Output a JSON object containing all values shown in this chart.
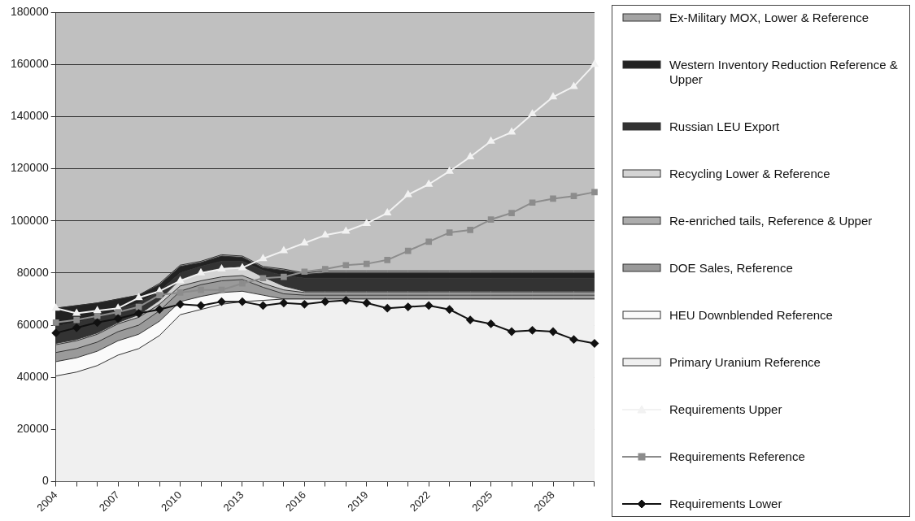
{
  "chart_data": {
    "type": "area",
    "stacked": true,
    "categories": [
      "2004",
      null,
      null,
      "2007",
      null,
      null,
      "2010",
      null,
      null,
      "2013",
      null,
      null,
      "2016",
      null,
      null,
      "2019",
      null,
      null,
      "2022",
      null,
      null,
      "2025",
      null,
      null,
      "2028",
      null,
      null
    ],
    "ylim": [
      0,
      180000
    ],
    "yticks": [
      0,
      20000,
      40000,
      60000,
      80000,
      100000,
      120000,
      140000,
      160000,
      180000
    ],
    "grid": "y",
    "legend": "right",
    "series": [
      {
        "name": "Requirements Lower",
        "type": "line",
        "marker": "diamond",
        "color": "#111111",
        "values": [
          57000,
          59000,
          61000,
          62500,
          64500,
          66000,
          68000,
          67500,
          69000,
          69000,
          67500,
          68500,
          68000,
          69000,
          69500,
          68500,
          66500,
          67000,
          67500,
          66000,
          62000,
          60500,
          57500,
          58000,
          57500,
          54500,
          53000
        ]
      },
      {
        "name": "Requirements Reference",
        "type": "line",
        "marker": "square",
        "color": "#8c8c8c",
        "values": [
          61000,
          62000,
          63500,
          65000,
          67000,
          71500,
          72500,
          73500,
          73500,
          76000,
          78000,
          78500,
          80500,
          81500,
          83000,
          83500,
          85000,
          88500,
          92000,
          95500,
          96500,
          100500,
          103000,
          107000,
          108500,
          109500,
          111000
        ]
      },
      {
        "name": "Requirements Upper",
        "type": "line",
        "marker": "triangle",
        "color": "#f2f2f2",
        "values": [
          66500,
          64500,
          65500,
          66500,
          70500,
          73000,
          77000,
          80000,
          81500,
          82000,
          85500,
          88500,
          91500,
          94500,
          96000,
          99000,
          103000,
          110000,
          114000,
          119000,
          124500,
          130500,
          134000,
          141000,
          147500,
          151500,
          160000
        ]
      },
      {
        "name": "Primary Uranium Reference",
        "color": "#f0f0f0",
        "values": [
          40500,
          42000,
          44500,
          48500,
          51000,
          56000,
          64000,
          66000,
          68000,
          69000,
          69500,
          70000,
          70000,
          70000,
          70000,
          70000,
          70000,
          70000,
          70000,
          70000,
          70000,
          70000,
          70000,
          70000,
          70000,
          70000,
          70000
        ]
      },
      {
        "name": "HEU Downblended Reference",
        "color": "#fafafa",
        "values": [
          5500,
          5500,
          5500,
          5500,
          5500,
          5500,
          5000,
          5000,
          4500,
          4000,
          2000,
          0,
          0,
          0,
          0,
          0,
          0,
          0,
          0,
          0,
          0,
          0,
          0,
          0,
          0,
          0,
          0
        ]
      },
      {
        "name": "DOE Sales, Reference",
        "color": "#9a9a9a",
        "values": [
          3500,
          3500,
          3500,
          3500,
          3500,
          4000,
          4000,
          4500,
          4500,
          4500,
          3000,
          2000,
          1500,
          1500,
          1500,
          1500,
          1500,
          1500,
          1500,
          1500,
          1500,
          1500,
          1500,
          1500,
          1500,
          1500,
          1500
        ]
      },
      {
        "name": "Re-enriched tails, Reference & Upper",
        "color": "#acacac",
        "values": [
          3000,
          3000,
          3000,
          3000,
          3000,
          2500,
          2000,
          1500,
          1500,
          1500,
          1500,
          1500,
          1000,
          1000,
          1000,
          1000,
          1000,
          1000,
          1000,
          1000,
          1000,
          1000,
          1000,
          1000,
          1000,
          1000,
          1000
        ]
      },
      {
        "name": "Recycling Lower & Reference",
        "color": "#d4d4d4",
        "values": [
          500,
          500,
          500,
          500,
          1000,
          1500,
          2500,
          3000,
          3500,
          3500,
          2500,
          1500,
          500,
          500,
          500,
          500,
          500,
          500,
          500,
          500,
          500,
          500,
          500,
          500,
          500,
          500,
          500
        ]
      },
      {
        "name": "Russian LEU Export",
        "color": "#333333",
        "values": [
          6500,
          6500,
          6000,
          5000,
          4500,
          3500,
          2500,
          2500,
          2500,
          2000,
          2500,
          4000,
          5000,
          5000,
          5000,
          5000,
          5000,
          5000,
          5000,
          5000,
          5000,
          5000,
          5000,
          5000,
          5000,
          5000,
          5000
        ]
      },
      {
        "name": "Western Inventory Reduction Reference & Upper",
        "color": "#222222",
        "values": [
          7000,
          6500,
          5500,
          4000,
          3000,
          2500,
          2500,
          1500,
          2000,
          1500,
          1000,
          2000,
          1500,
          2000,
          2000,
          2000,
          2000,
          2000,
          2000,
          2000,
          2000,
          2000,
          2000,
          2000,
          2000,
          2000,
          2000
        ]
      },
      {
        "name": "Ex-Military MOX, Lower & Reference",
        "color": "#a4a4a4",
        "values": [
          0,
          0,
          0,
          0,
          0,
          500,
          500,
          500,
          500,
          500,
          500,
          500,
          500,
          800,
          800,
          800,
          800,
          800,
          800,
          800,
          800,
          800,
          800,
          800,
          800,
          800,
          800
        ]
      }
    ]
  }
}
